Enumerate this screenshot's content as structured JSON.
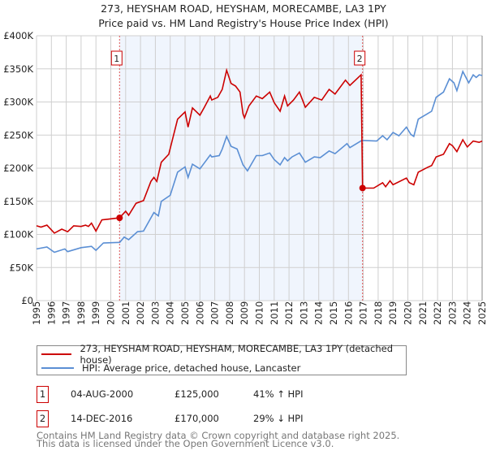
{
  "chart_data": {
    "type": "line",
    "title": "273, HEYSHAM ROAD, HEYSHAM, MORECAMBE, LA3 1PY",
    "subtitle": "Price paid vs. HM Land Registry's House Price Index (HPI)",
    "xlim": [
      1995,
      2025
    ],
    "ylim": [
      0,
      400000
    ],
    "grid": true,
    "y_ticks": [
      {
        "value": 0,
        "label": "£0"
      },
      {
        "value": 50000,
        "label": "£50K"
      },
      {
        "value": 100000,
        "label": "£100K"
      },
      {
        "value": 150000,
        "label": "£150K"
      },
      {
        "value": 200000,
        "label": "£200K"
      },
      {
        "value": 250000,
        "label": "£250K"
      },
      {
        "value": 300000,
        "label": "£300K"
      },
      {
        "value": 350000,
        "label": "£350K"
      },
      {
        "value": 400000,
        "label": "£400K"
      }
    ],
    "x_ticks": [
      "1995",
      "1996",
      "1997",
      "1998",
      "1999",
      "2000",
      "2001",
      "2002",
      "2003",
      "2004",
      "2005",
      "2006",
      "2007",
      "2008",
      "2009",
      "2010",
      "2011",
      "2012",
      "2013",
      "2014",
      "2015",
      "2016",
      "2017",
      "2018",
      "2019",
      "2020",
      "2021",
      "2022",
      "2023",
      "2024",
      "2025"
    ],
    "shaded_range": [
      2000.59,
      2016.95
    ],
    "series": [
      {
        "name": "273, HEYSHAM ROAD, HEYSHAM, MORECAMBE, LA3 1PY (detached house)",
        "color": "#cc0000",
        "points": [
          [
            1995,
            113000
          ],
          [
            1995.3,
            111000
          ],
          [
            1995.7,
            114000
          ],
          [
            1996.2,
            102000
          ],
          [
            1996.7,
            108000
          ],
          [
            1997.1,
            104000
          ],
          [
            1997.5,
            113000
          ],
          [
            1998,
            112000
          ],
          [
            1998.3,
            114000
          ],
          [
            1998.5,
            112000
          ],
          [
            1998.7,
            117000
          ],
          [
            1999,
            105000
          ],
          [
            1999.4,
            122000
          ],
          [
            1999.8,
            123000
          ],
          [
            2000.59,
            125000
          ],
          [
            2001,
            135000
          ],
          [
            2001.2,
            129000
          ],
          [
            2001.7,
            147000
          ],
          [
            2002.2,
            151000
          ],
          [
            2002.7,
            180000
          ],
          [
            2002.9,
            186000
          ],
          [
            2003.1,
            180000
          ],
          [
            2003.4,
            209000
          ],
          [
            2003.9,
            221000
          ],
          [
            2004.5,
            274000
          ],
          [
            2005,
            285000
          ],
          [
            2005.2,
            262000
          ],
          [
            2005.5,
            291000
          ],
          [
            2006,
            280000
          ],
          [
            2006.3,
            292000
          ],
          [
            2006.7,
            309000
          ],
          [
            2006.8,
            303000
          ],
          [
            2007.2,
            307000
          ],
          [
            2007.5,
            319000
          ],
          [
            2007.8,
            348000
          ],
          [
            2008.1,
            328000
          ],
          [
            2008.4,
            324000
          ],
          [
            2008.7,
            315000
          ],
          [
            2008.9,
            282000
          ],
          [
            2009.0,
            276000
          ],
          [
            2009.3,
            294000
          ],
          [
            2009.8,
            309000
          ],
          [
            2010.2,
            305000
          ],
          [
            2010.7,
            315000
          ],
          [
            2011.0,
            299000
          ],
          [
            2011.4,
            286000
          ],
          [
            2011.7,
            309000
          ],
          [
            2011.9,
            294000
          ],
          [
            2012.3,
            303000
          ],
          [
            2012.7,
            315000
          ],
          [
            2013.1,
            292000
          ],
          [
            2013.7,
            307000
          ],
          [
            2014.2,
            303000
          ],
          [
            2014.7,
            319000
          ],
          [
            2015.1,
            312000
          ],
          [
            2015.8,
            333000
          ],
          [
            2016.1,
            325000
          ],
          [
            2016.85,
            341000
          ],
          [
            2016.95,
            170000
          ],
          [
            2017.4,
            170000
          ],
          [
            2017.7,
            170000
          ],
          [
            2018.3,
            178000
          ],
          [
            2018.5,
            172000
          ],
          [
            2018.8,
            181000
          ],
          [
            2019.0,
            175000
          ],
          [
            2019.9,
            185000
          ],
          [
            2020.1,
            178000
          ],
          [
            2020.4,
            175000
          ],
          [
            2020.7,
            194000
          ],
          [
            2021.3,
            201000
          ],
          [
            2021.6,
            204000
          ],
          [
            2021.9,
            217000
          ],
          [
            2022.4,
            221000
          ],
          [
            2022.8,
            237000
          ],
          [
            2023.0,
            234000
          ],
          [
            2023.3,
            225000
          ],
          [
            2023.7,
            243000
          ],
          [
            2024.0,
            232000
          ],
          [
            2024.4,
            241000
          ],
          [
            2024.8,
            239000
          ],
          [
            2025,
            241000
          ]
        ]
      },
      {
        "name": "HPI: Average price, detached house, Lancaster",
        "color": "#5b8fd4",
        "points": [
          [
            1995,
            78000
          ],
          [
            1995.7,
            81000
          ],
          [
            1996.2,
            73000
          ],
          [
            1996.9,
            78000
          ],
          [
            1997.1,
            74000
          ],
          [
            1998,
            80000
          ],
          [
            1998.7,
            82000
          ],
          [
            1999,
            76000
          ],
          [
            1999.5,
            87000
          ],
          [
            2000.6,
            88000
          ],
          [
            2000.9,
            96000
          ],
          [
            2001.2,
            92000
          ],
          [
            2001.8,
            104000
          ],
          [
            2002.2,
            105000
          ],
          [
            2002.9,
            133000
          ],
          [
            2003.2,
            128000
          ],
          [
            2003.4,
            150000
          ],
          [
            2004,
            159000
          ],
          [
            2004.5,
            194000
          ],
          [
            2005,
            202000
          ],
          [
            2005.2,
            186000
          ],
          [
            2005.5,
            206000
          ],
          [
            2006,
            199000
          ],
          [
            2006.7,
            220000
          ],
          [
            2006.8,
            217000
          ],
          [
            2007.3,
            219000
          ],
          [
            2007.5,
            229000
          ],
          [
            2007.8,
            248000
          ],
          [
            2008.1,
            233000
          ],
          [
            2008.5,
            229000
          ],
          [
            2008.9,
            205000
          ],
          [
            2009.2,
            196000
          ],
          [
            2009.8,
            219000
          ],
          [
            2010.2,
            219000
          ],
          [
            2010.7,
            223000
          ],
          [
            2011.0,
            213000
          ],
          [
            2011.4,
            205000
          ],
          [
            2011.7,
            216000
          ],
          [
            2011.9,
            211000
          ],
          [
            2012.2,
            217000
          ],
          [
            2012.7,
            223000
          ],
          [
            2013.1,
            209000
          ],
          [
            2013.7,
            217000
          ],
          [
            2014.1,
            216000
          ],
          [
            2014.7,
            226000
          ],
          [
            2015.1,
            222000
          ],
          [
            2015.9,
            237000
          ],
          [
            2016.1,
            231000
          ],
          [
            2016.9,
            242000
          ],
          [
            2017.9,
            241000
          ],
          [
            2018.3,
            249000
          ],
          [
            2018.6,
            243000
          ],
          [
            2019.0,
            254000
          ],
          [
            2019.4,
            249000
          ],
          [
            2019.9,
            262000
          ],
          [
            2020.2,
            251000
          ],
          [
            2020.4,
            248000
          ],
          [
            2020.7,
            274000
          ],
          [
            2021.3,
            282000
          ],
          [
            2021.6,
            286000
          ],
          [
            2021.9,
            307000
          ],
          [
            2022.4,
            315000
          ],
          [
            2022.8,
            335000
          ],
          [
            2023.1,
            329000
          ],
          [
            2023.3,
            317000
          ],
          [
            2023.7,
            346000
          ],
          [
            2024.1,
            329000
          ],
          [
            2024.4,
            341000
          ],
          [
            2024.6,
            337000
          ],
          [
            2024.8,
            341000
          ],
          [
            2025,
            340000
          ]
        ]
      }
    ],
    "annotations": [
      {
        "label": "1",
        "x": 2000.59,
        "y": 125000
      },
      {
        "label": "2",
        "x": 2016.95,
        "y": 170000
      }
    ]
  },
  "legend": {
    "items": [
      {
        "label": "273, HEYSHAM ROAD, HEYSHAM, MORECAMBE, LA3 1PY (detached house)",
        "color": "#cc0000"
      },
      {
        "label": "HPI: Average price, detached house, Lancaster",
        "color": "#5b8fd4"
      }
    ]
  },
  "sales": [
    {
      "num": "1",
      "date": "04-AUG-2000",
      "price": "£125,000",
      "hpi": "41% ↑ HPI"
    },
    {
      "num": "2",
      "date": "14-DEC-2016",
      "price": "£170,000",
      "hpi": "29% ↓ HPI"
    }
  ],
  "footer": {
    "line1": "Contains HM Land Registry data © Crown copyright and database right 2025.",
    "line2": "This data is licensed under the Open Government Licence v3.0."
  }
}
